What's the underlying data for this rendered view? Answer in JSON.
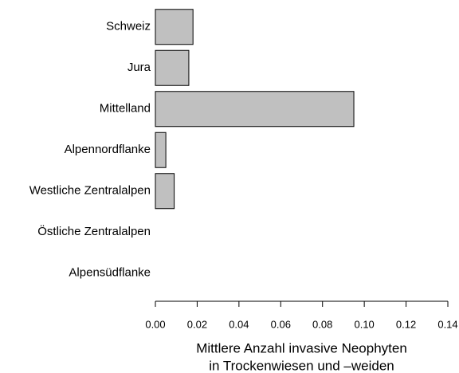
{
  "chart_data": {
    "type": "barh",
    "categories": [
      "Schweiz",
      "Jura",
      "Mittelland",
      "Alpennordflanke",
      "Westliche Zentralalpen",
      "Östliche Zentralalpen",
      "Alpensüdflanke"
    ],
    "values": [
      0.018,
      0.016,
      0.095,
      0.005,
      0.009,
      0,
      0
    ],
    "color": "#c0c0c0",
    "xlim": [
      0,
      0.14
    ],
    "xticks": [
      {
        "value": 0,
        "label": "0.00"
      },
      0.02,
      0.04,
      0.06,
      0.08,
      {
        "value": 0.1,
        "label": "0.10"
      },
      0.12,
      0.14
    ],
    "xlabel": [
      "Mittlere Anzahl invasive Neophyten",
      "in Trockenwiesen und –weiden"
    ]
  }
}
